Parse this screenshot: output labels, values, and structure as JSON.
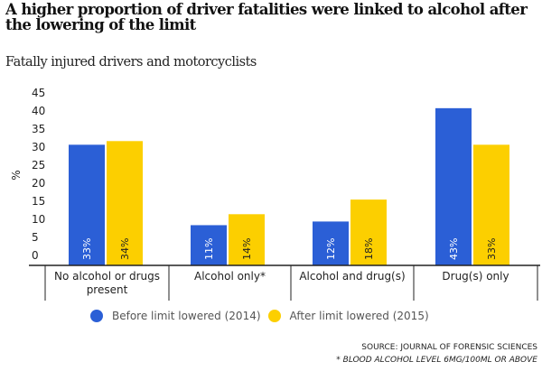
{
  "title": "A higher proportion of driver fatalities were linked to alcohol after the lowering of the limit",
  "subtitle": "Fatally injured drivers and motorcyclists",
  "source": "SOURCE: JOURNAL OF FORENSIC SCIENCES",
  "footnote": "* BLOOD ALCOHOL LEVEL 6MG/100ML OR ABOVE",
  "colors": {
    "before": "#2b5fd6",
    "after": "#fccf00"
  },
  "chart_data": {
    "type": "bar",
    "title": "A higher proportion of driver fatalities were linked to alcohol after the lowering of the limit",
    "subtitle": "Fatally injured drivers and motorcyclists",
    "xlabel": "",
    "ylabel": "%",
    "ylim": [
      0,
      45
    ],
    "yticks": [
      0,
      5,
      10,
      15,
      20,
      25,
      30,
      35,
      40,
      45
    ],
    "grid": false,
    "legend_position": "bottom",
    "categories": [
      "No alcohol or drugs present",
      "Alcohol only*",
      "Alcohol and drug(s)",
      "Drug(s) only"
    ],
    "category_lines": [
      [
        "No alcohol or drugs",
        "present"
      ],
      [
        "Alcohol only*"
      ],
      [
        "Alcohol and drug(s)"
      ],
      [
        "Drug(s) only"
      ]
    ],
    "series": [
      {
        "name": "Before limit lowered (2014)",
        "color": "#2b5fd6",
        "values": [
          33,
          11,
          12,
          43
        ],
        "labels": [
          "33%",
          "11%",
          "12%",
          "43%"
        ],
        "label_color": "#ffffff"
      },
      {
        "name": "After limit lowered (2015)",
        "color": "#fccf00",
        "values": [
          34,
          14,
          18,
          33
        ],
        "labels": [
          "34%",
          "14%",
          "18%",
          "33%"
        ],
        "label_color": "#222222"
      }
    ]
  }
}
